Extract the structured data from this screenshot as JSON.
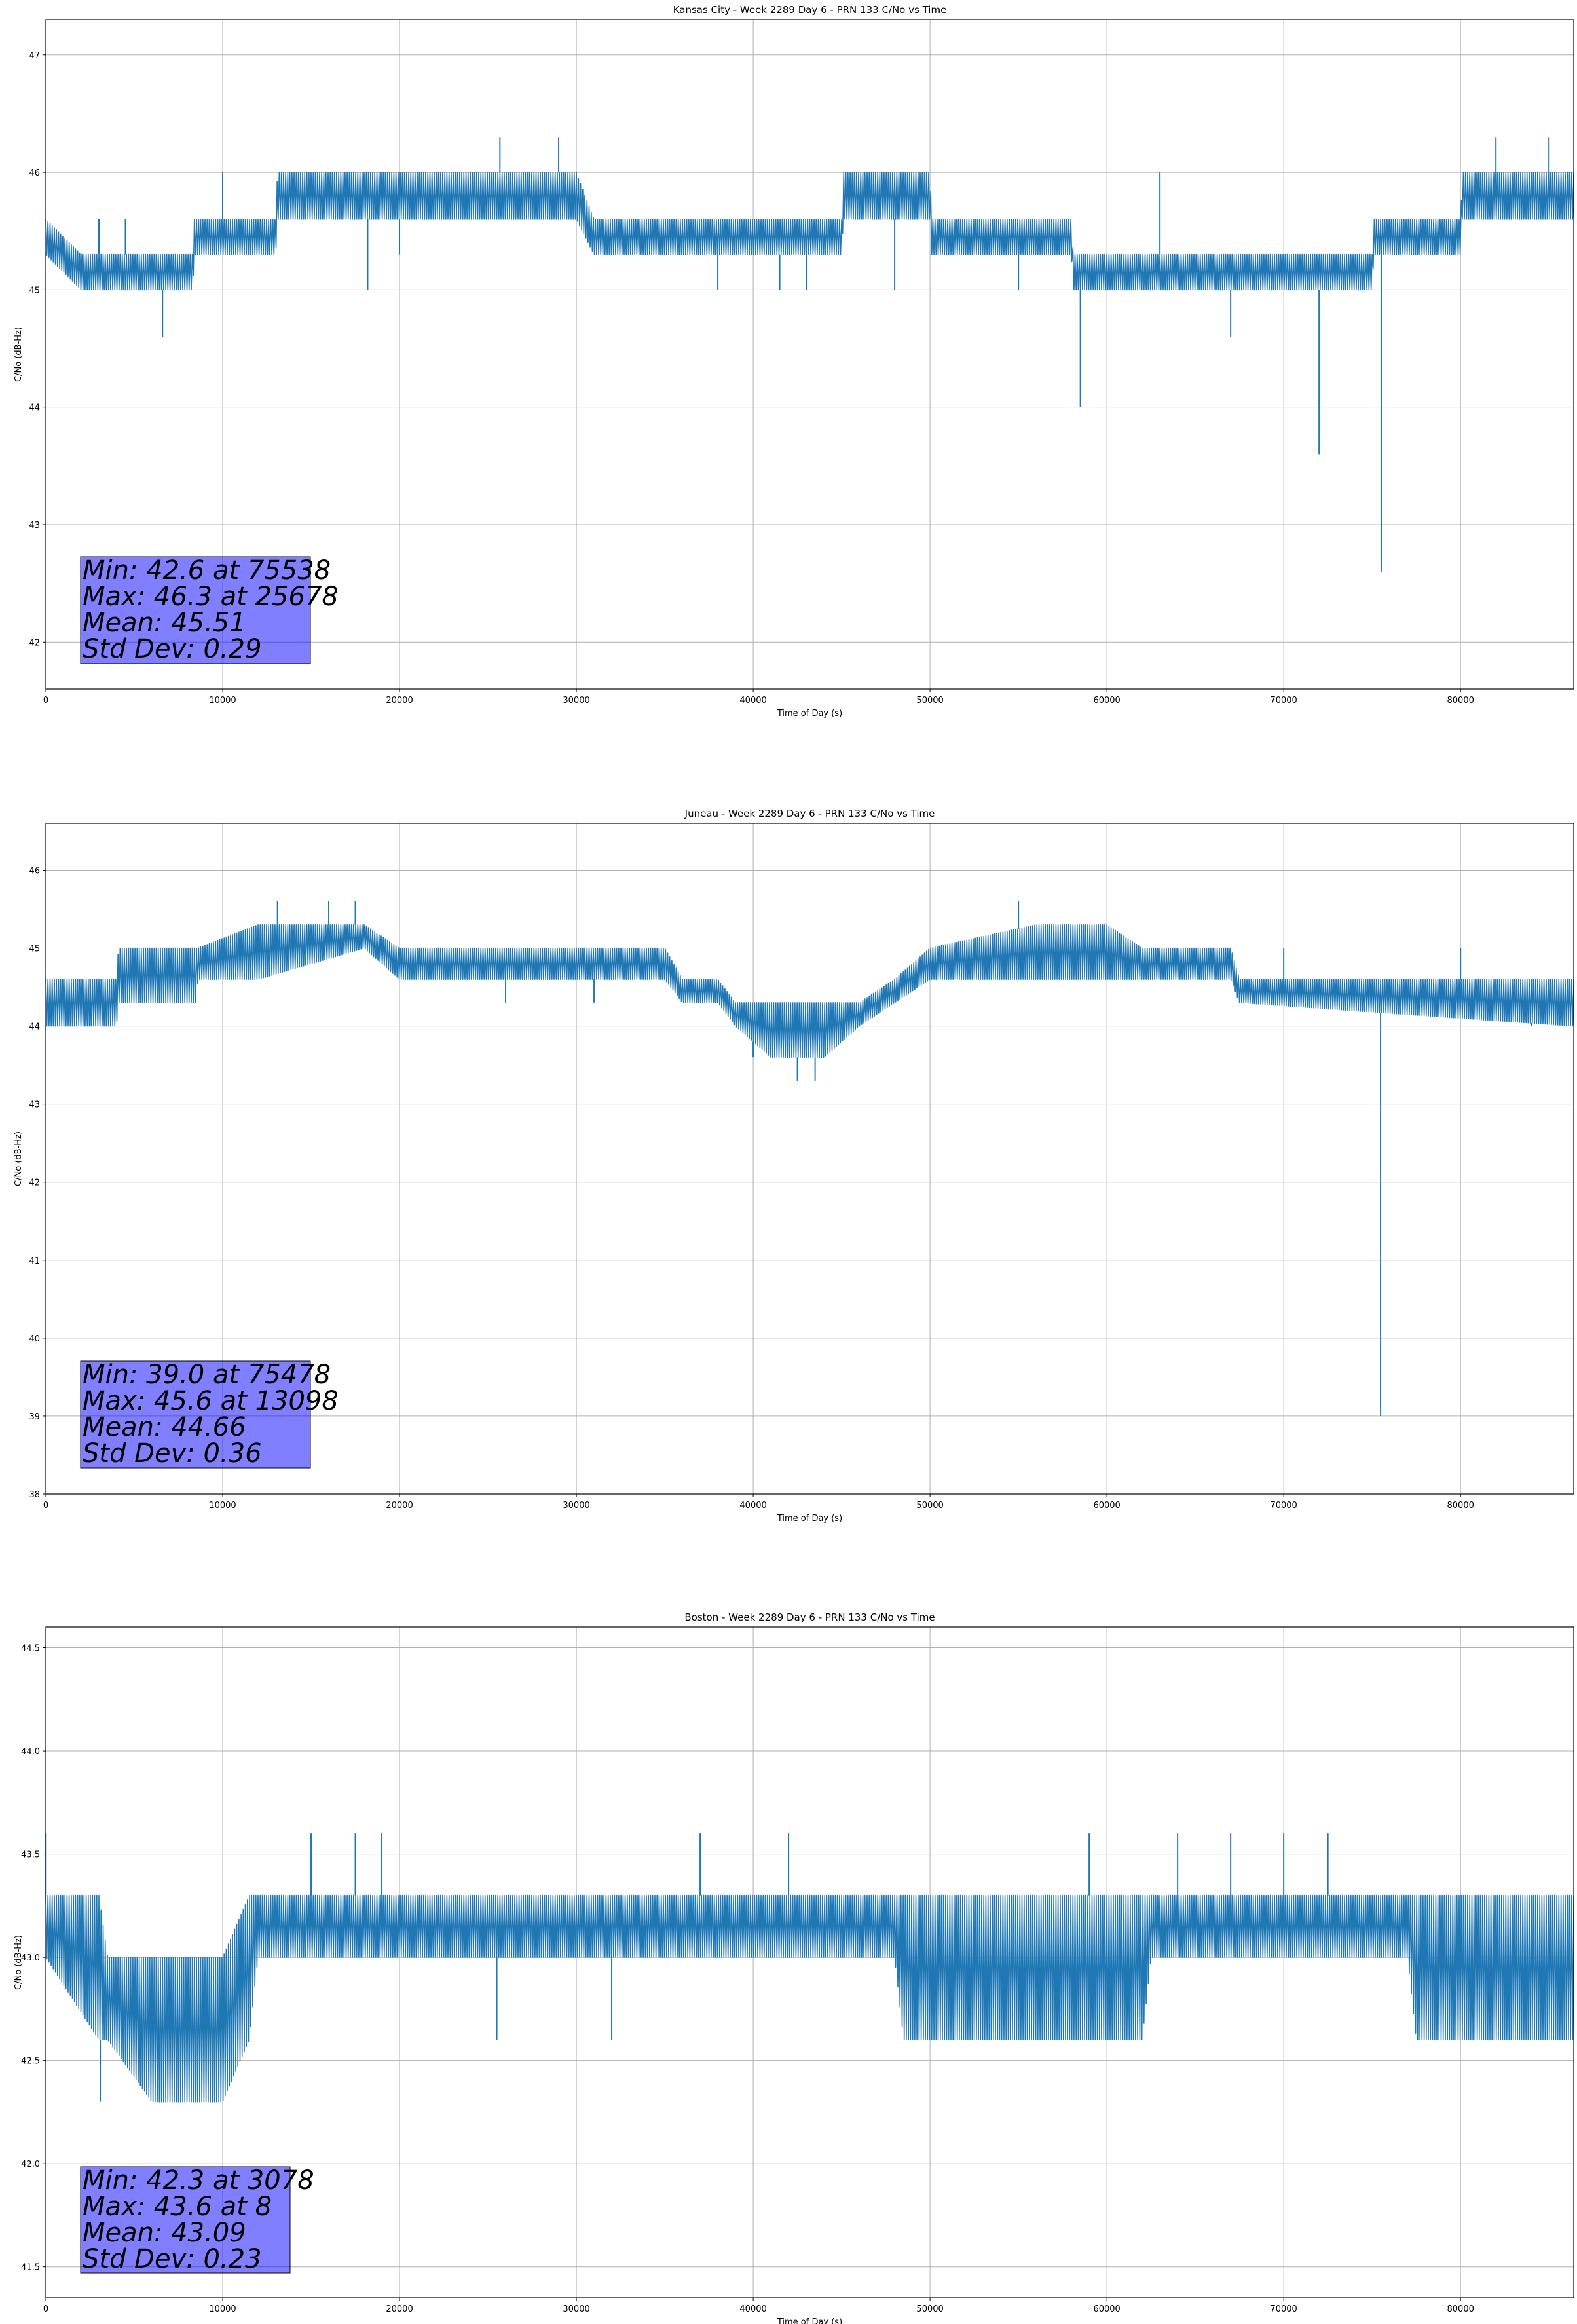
{
  "chart_data": [
    {
      "type": "line",
      "title": "Kansas City - Week 2289 Day 6 - PRN 133 C/No vs Time",
      "xlabel": "Time of Day (s)",
      "ylabel": "C/No (dB-Hz)",
      "xlim": [
        0,
        86400
      ],
      "ylim": [
        41.6,
        47.3
      ],
      "xticks": [
        0,
        10000,
        20000,
        30000,
        40000,
        50000,
        60000,
        70000,
        80000
      ],
      "yticks": [
        42,
        43,
        44,
        45,
        46,
        47
      ],
      "grid": true,
      "stats": [
        "Min: 42.6 at 75538",
        "Max: 46.3 at 25678",
        "Mean: 45.51",
        "Std Dev: 0.29"
      ],
      "series": [
        {
          "band": [
            [
              0,
              45.3,
              45.6
            ],
            [
              2000,
              45.0,
              45.3
            ],
            [
              4000,
              45.0,
              45.3
            ],
            [
              8300,
              45.0,
              45.3
            ],
            [
              8400,
              45.3,
              45.6
            ],
            [
              13000,
              45.3,
              45.6
            ],
            [
              13100,
              45.6,
              46.0
            ],
            [
              30000,
              45.6,
              46.0
            ],
            [
              31000,
              45.3,
              45.6
            ],
            [
              45000,
              45.3,
              45.6
            ],
            [
              45100,
              45.6,
              46.0
            ],
            [
              50000,
              45.6,
              46.0
            ],
            [
              50100,
              45.3,
              45.6
            ],
            [
              58000,
              45.3,
              45.6
            ],
            [
              58100,
              45.0,
              45.3
            ],
            [
              75000,
              45.0,
              45.3
            ],
            [
              75100,
              45.3,
              45.6
            ],
            [
              80000,
              45.3,
              45.6
            ],
            [
              80100,
              45.6,
              46.0
            ],
            [
              86400,
              45.6,
              46.0
            ]
          ],
          "spikes": [
            [
              3000,
              45.6
            ],
            [
              4500,
              45.6
            ],
            [
              6600,
              44.6
            ],
            [
              10000,
              46.0
            ],
            [
              18200,
              45.0
            ],
            [
              20000,
              45.3
            ],
            [
              25678,
              46.3
            ],
            [
              29000,
              46.3
            ],
            [
              38000,
              45.0
            ],
            [
              41500,
              45.0
            ],
            [
              43000,
              45.0
            ],
            [
              48000,
              45.0
            ],
            [
              55000,
              45.0
            ],
            [
              58500,
              44.0
            ],
            [
              63000,
              46.0
            ],
            [
              67000,
              44.6
            ],
            [
              72000,
              43.6
            ],
            [
              75538,
              42.6
            ],
            [
              82000,
              46.3
            ],
            [
              85000,
              46.3
            ]
          ]
        }
      ]
    },
    {
      "type": "line",
      "title": "Juneau - Week 2289 Day 6 - PRN 133 C/No vs Time",
      "xlabel": "Time of Day (s)",
      "ylabel": "C/No (dB-Hz)",
      "xlim": [
        0,
        86400
      ],
      "ylim": [
        38.0,
        46.6
      ],
      "xticks": [
        0,
        10000,
        20000,
        30000,
        40000,
        50000,
        60000,
        70000,
        80000
      ],
      "yticks": [
        38,
        39,
        40,
        41,
        42,
        43,
        44,
        45,
        46
      ],
      "grid": true,
      "stats": [
        "Min: 39.0 at 75478",
        "Max: 45.6 at 13098",
        "Mean: 44.66",
        "Std Dev: 0.36"
      ],
      "series": [
        {
          "band": [
            [
              0,
              44.0,
              44.6
            ],
            [
              4000,
              44.0,
              44.6
            ],
            [
              4100,
              44.3,
              45.0
            ],
            [
              8500,
              44.3,
              45.0
            ],
            [
              8600,
              44.6,
              45.0
            ],
            [
              12000,
              44.6,
              45.3
            ],
            [
              18000,
              45.0,
              45.3
            ],
            [
              20000,
              44.6,
              45.0
            ],
            [
              35000,
              44.6,
              45.0
            ],
            [
              36000,
              44.3,
              44.6
            ],
            [
              38000,
              44.3,
              44.6
            ],
            [
              39000,
              44.0,
              44.3
            ],
            [
              41000,
              43.6,
              44.3
            ],
            [
              44000,
              43.6,
              44.3
            ],
            [
              46000,
              44.0,
              44.3
            ],
            [
              48000,
              44.3,
              44.6
            ],
            [
              50000,
              44.6,
              45.0
            ],
            [
              56000,
              44.6,
              45.3
            ],
            [
              60000,
              44.6,
              45.3
            ],
            [
              62000,
              44.6,
              45.0
            ],
            [
              67000,
              44.6,
              45.0
            ],
            [
              67500,
              44.3,
              44.6
            ],
            [
              86400,
              44.0,
              44.6
            ]
          ],
          "spikes": [
            [
              2500,
              44.0
            ],
            [
              13098,
              45.6
            ],
            [
              16000,
              45.6
            ],
            [
              17500,
              45.6
            ],
            [
              26000,
              44.3
            ],
            [
              31000,
              44.3
            ],
            [
              40000,
              43.6
            ],
            [
              42500,
              43.3
            ],
            [
              43500,
              43.3
            ],
            [
              55000,
              45.6
            ],
            [
              58000,
              45.3
            ],
            [
              70000,
              45.0
            ],
            [
              75478,
              39.0
            ],
            [
              80000,
              45.0
            ],
            [
              84000,
              44.0
            ]
          ]
        }
      ]
    },
    {
      "type": "line",
      "title": "Boston - Week 2289 Day 6 - PRN 133 C/No vs Time",
      "xlabel": "Time of Day (s)",
      "ylabel": "C/No (dB-Hz)",
      "xlim": [
        0,
        86400
      ],
      "ylim": [
        41.35,
        44.6
      ],
      "xticks": [
        0,
        10000,
        20000,
        30000,
        40000,
        50000,
        60000,
        70000,
        80000
      ],
      "yticks": [
        41.5,
        42.0,
        42.5,
        43.0,
        43.5,
        44.0,
        44.5
      ],
      "grid": true,
      "stats": [
        "Min: 42.3 at 3078",
        "Max: 43.6 at 8",
        "Mean: 43.09",
        "Std Dev: 0.23"
      ],
      "series": [
        {
          "band": [
            [
              0,
              43.0,
              43.3
            ],
            [
              3000,
              42.6,
              43.3
            ],
            [
              3500,
              42.6,
              43.0
            ],
            [
              6000,
              42.3,
              43.0
            ],
            [
              10000,
              42.3,
              43.0
            ],
            [
              11500,
              42.6,
              43.3
            ],
            [
              12000,
              43.0,
              43.3
            ],
            [
              48000,
              43.0,
              43.3
            ],
            [
              48500,
              42.6,
              43.3
            ],
            [
              62000,
              42.6,
              43.3
            ],
            [
              62500,
              43.0,
              43.3
            ],
            [
              77000,
              43.0,
              43.3
            ],
            [
              77500,
              42.6,
              43.3
            ],
            [
              86400,
              42.6,
              43.3
            ]
          ],
          "spikes": [
            [
              8,
              43.6
            ],
            [
              3078,
              42.3
            ],
            [
              15000,
              43.6
            ],
            [
              17500,
              43.6
            ],
            [
              19000,
              43.6
            ],
            [
              25500,
              42.6
            ],
            [
              32000,
              42.6
            ],
            [
              37000,
              43.6
            ],
            [
              42000,
              43.6
            ],
            [
              59000,
              43.6
            ],
            [
              64000,
              43.6
            ],
            [
              67000,
              43.6
            ],
            [
              70000,
              43.6
            ],
            [
              72500,
              43.6
            ]
          ]
        }
      ]
    }
  ]
}
